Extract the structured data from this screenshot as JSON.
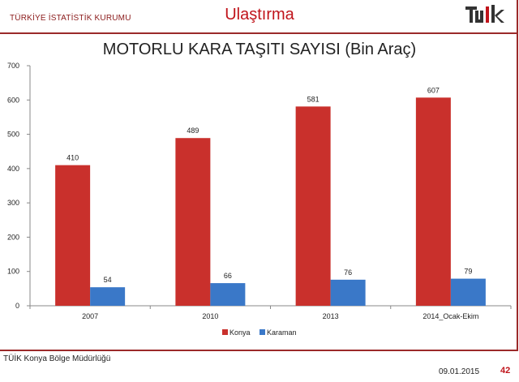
{
  "header": {
    "org": "TÜRKİYE İSTATİSTİK KURUMU",
    "section": "Ulaştırma",
    "logo": "TÜİK"
  },
  "footer": {
    "office": "TÜİK Konya Bölge Müdürlüğü",
    "date": "09.01.2015",
    "page": "42"
  },
  "chart_data": {
    "type": "bar",
    "title": "MOTORLU KARA TAŞITI SAYISI (Bin Araç)",
    "categories": [
      "2007",
      "2010",
      "2013",
      "2014_Ocak-Ekim"
    ],
    "series": [
      {
        "name": "Konya",
        "values": [
          410,
          489,
          581,
          607
        ],
        "color": "#c9302c"
      },
      {
        "name": "Karaman",
        "values": [
          54,
          66,
          76,
          79
        ],
        "color": "#3a78c8"
      }
    ],
    "ylim": [
      0,
      700
    ],
    "yticks": [
      0,
      100,
      200,
      300,
      400,
      500,
      600,
      700
    ],
    "grid": false,
    "legend": "bottom",
    "data_labels": true
  }
}
